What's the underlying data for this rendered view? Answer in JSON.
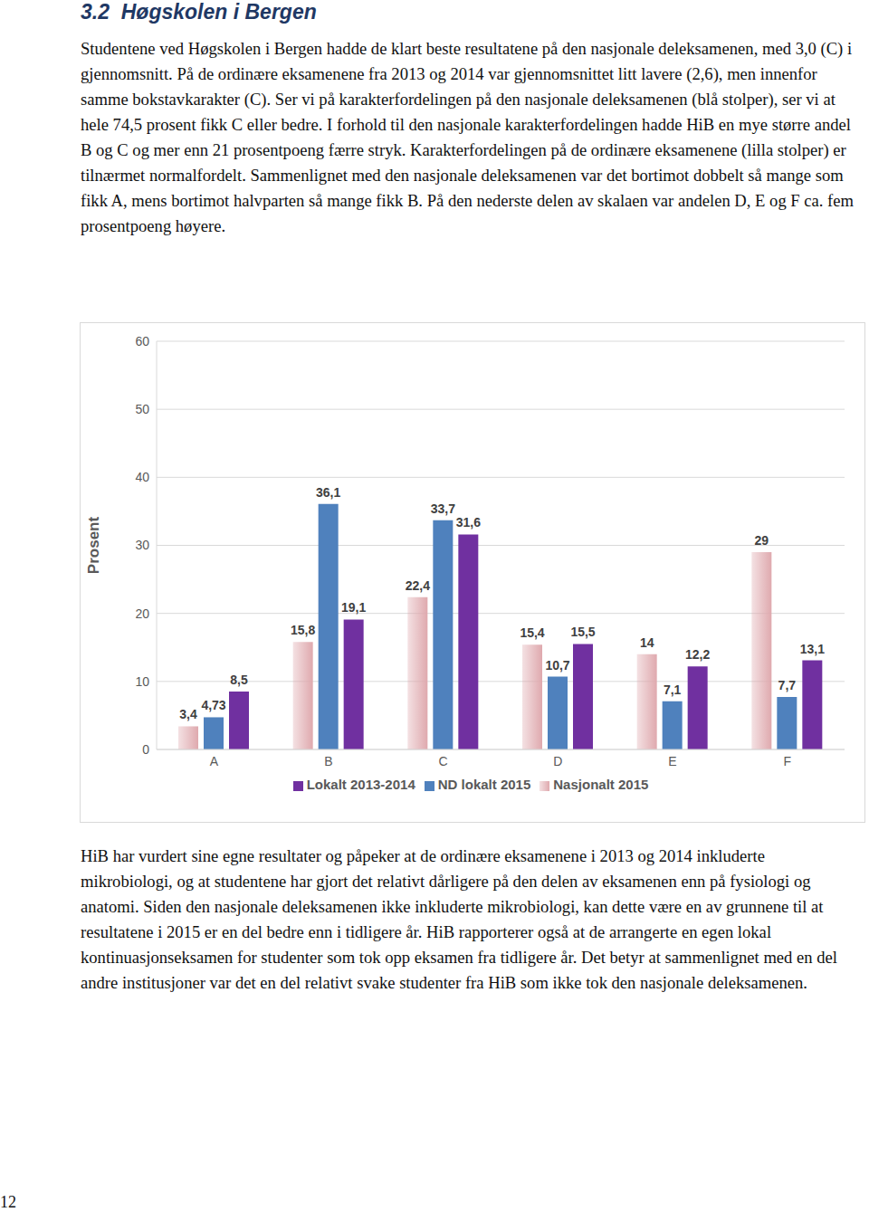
{
  "heading": "3.2  Høgskolen i Bergen",
  "paragraphs_before": [
    "Studentene ved Høgskolen i Bergen hadde de klart beste resultatene på den nasjonale deleksamenen, med 3,0 (C) i gjennomsnitt. På de ordinære eksamenene fra 2013 og 2014 var gjennomsnittet litt lavere (2,6), men innenfor samme bokstavkarakter (C). Ser vi på karakterfordelingen på den nasjonale deleksamenen (blå stolper), ser vi at hele 74,5 prosent fikk C eller bedre. I forhold til den nasjonale karakterfordelingen hadde HiB en mye større andel B og C og mer enn 21 prosentpoeng færre stryk. Karakterfordelingen på de ordinære eksamenene (lilla stolper) er tilnærmet normalfordelt. Sammenlignet med den nasjonale deleksamenen var det bortimot dobbelt så mange som fikk A, mens bortimot halvparten så mange fikk B. På den nederste delen av skalaen var andelen D, E og F ca. fem prosentpoeng høyere."
  ],
  "chart_data": {
    "type": "bar",
    "y_label": "Prosent",
    "categories": [
      "A",
      "B",
      "C",
      "D",
      "E",
      "F"
    ],
    "series": [
      {
        "name": "Nasjonalt 2015",
        "color": "#dfa9ae",
        "values": [
          3.4,
          15.8,
          22.4,
          15.4,
          14,
          29
        ],
        "value_labels": [
          "3,4",
          "15,8",
          "22,4",
          "15,4",
          "14",
          "29"
        ]
      },
      {
        "name": "ND lokalt 2015",
        "color": "#4f81bd",
        "values": [
          4.73,
          36.1,
          33.7,
          10.7,
          7.1,
          7.7
        ],
        "value_labels": [
          "4,73",
          "36,1",
          "33,7",
          "10,7",
          "7,1",
          "7,7"
        ]
      },
      {
        "name": "Lokalt 2013-2014",
        "color": "#7030a0",
        "values": [
          8.5,
          19.1,
          31.6,
          15.5,
          12.2,
          13.1
        ],
        "value_labels": [
          "8,5",
          "19,1",
          "31,6",
          "15,5",
          "12,2",
          "13,1"
        ]
      }
    ],
    "ylim": [
      0,
      60
    ],
    "yticks": [
      0,
      10,
      20,
      30,
      40,
      50,
      60
    ],
    "grid": true,
    "data_labels": true,
    "legend": "bottom"
  },
  "paragraphs_after": [
    "HiB har vurdert sine egne resultater og påpeker at de ordinære eksamenene i 2013 og 2014 inkluderte mikrobiologi, og at studentene har gjort det relativt dårligere på den delen av eksamenen enn på fysiologi og anatomi. Siden den nasjonale deleksamenen ikke inkluderte mikrobiologi, kan dette være en av grunnene til at resultatene i 2015 er en del bedre enn i tidligere år. HiB rapporterer også at de arrangerte en egen lokal kontinuasjonseksamen for studenter som tok opp eksamen fra tidligere år. Det betyr at sammenlignet med en del andre institusjoner var det en del relativt svake studenter fra HiB som ikke tok den nasjonale deleksamenen."
  ],
  "page_number": 12
}
